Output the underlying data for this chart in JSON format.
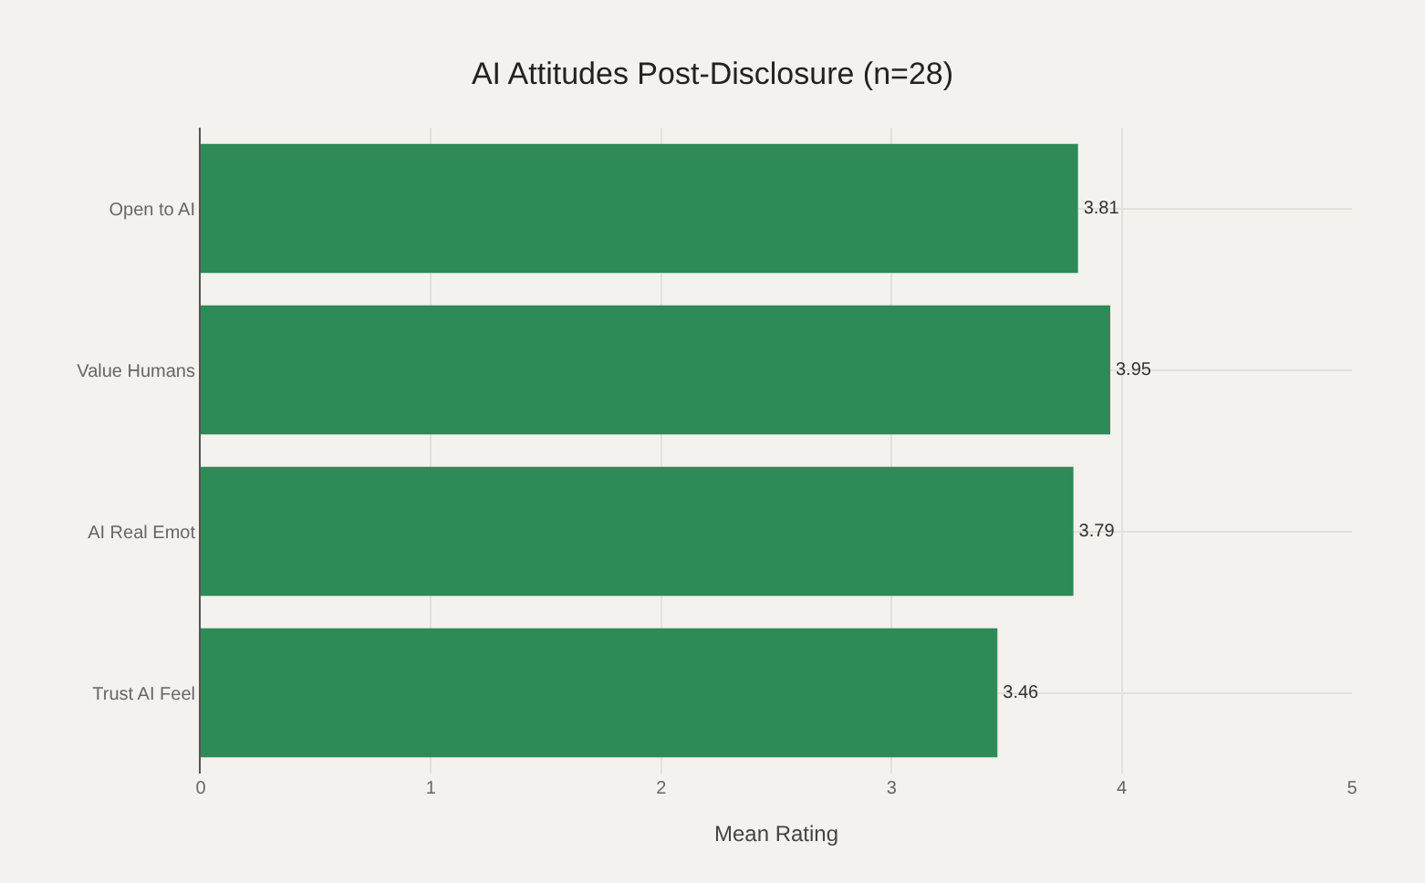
{
  "chart_data": {
    "type": "bar",
    "orientation": "horizontal",
    "title": "AI Attitudes Post-Disclosure (n=28)",
    "xlabel": "Mean Rating",
    "categories": [
      "Open to AI",
      "Value Humans",
      "AI Real Emot",
      "Trust AI Feel"
    ],
    "values": [
      3.81,
      3.95,
      3.79,
      3.46
    ],
    "color": "#2e8b57",
    "data_labels": true,
    "xlim": [
      0,
      5
    ],
    "xticks": [
      0,
      1,
      2,
      3,
      4,
      5
    ],
    "grid": true
  }
}
